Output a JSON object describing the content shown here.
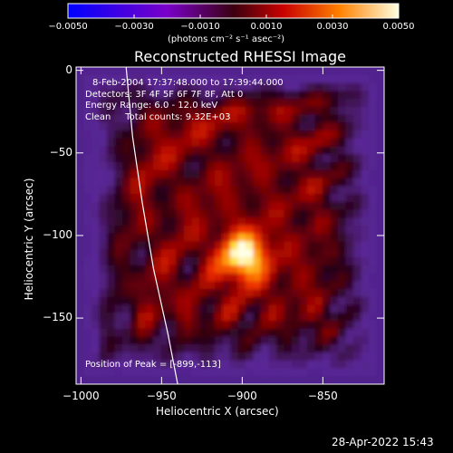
{
  "colorbar": {
    "tick_labels": [
      "-0.0050",
      "-0.0030",
      "-0.0010",
      "0.0010",
      "0.0030",
      "0.0050"
    ],
    "unit_label": "(photons cm⁻² s⁻¹ asec⁻²)",
    "range": [
      -0.005,
      0.005
    ]
  },
  "chart_data": {
    "type": "heatmap",
    "title": "Reconstructed RHESSI Image",
    "xlabel": "Heliocentric X (arcsec)",
    "ylabel": "Heliocentric Y (arcsec)",
    "xlim": [
      -1003,
      -812
    ],
    "ylim": [
      -190,
      2
    ],
    "x_ticks": [
      -1000,
      -950,
      -900,
      -850
    ],
    "x_tick_labels": [
      "−1000",
      "−950",
      "−900",
      "−850"
    ],
    "y_ticks": [
      0,
      -50,
      -100,
      -150
    ],
    "y_tick_labels": [
      "0",
      "−50",
      "−100",
      "−150"
    ],
    "annotations": [
      "8-Feb-2004 17:37:48.000 to 17:39:44.000",
      "Detectors: 3F 4F 5F 6F 7F 8F, Att 0",
      "Energy Range: 6.0 - 12.0 keV",
      "Clean     Total counts: 9.32E+03"
    ],
    "peak_label": "Position of Peak = [-899,-113]",
    "peak_position": [
      -899,
      -113
    ],
    "limb_curve": [
      [
        -972,
        2
      ],
      [
        -968,
        -40
      ],
      [
        -962,
        -80
      ],
      [
        -955,
        -120
      ],
      [
        -946,
        -160
      ],
      [
        -940,
        -190
      ]
    ]
  },
  "footer": {
    "timestamp": "28-Apr-2022 15:43"
  }
}
